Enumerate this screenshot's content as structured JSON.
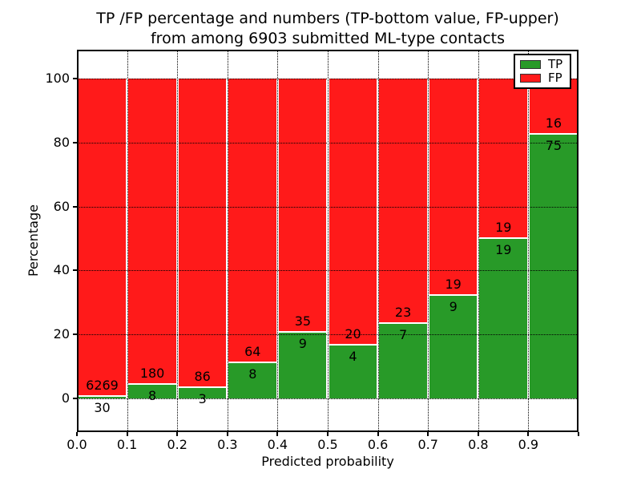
{
  "title": {
    "line1": "TP /FP percentage and numbers (TP-bottom value, FP-upper)",
    "line2": "from among 6903 submitted ML-type contacts"
  },
  "chart_data": {
    "type": "bar",
    "stacked": true,
    "normalized_to_percent": true,
    "grid": "dotted",
    "legend_position": "upper right",
    "total_contacts": 6903,
    "xlabel": "Predicted probability",
    "ylabel": "Percentage",
    "categories": [
      "0.0-0.1",
      "0.1-0.2",
      "0.2-0.3",
      "0.3-0.4",
      "0.4-0.5",
      "0.5-0.6",
      "0.6-0.7",
      "0.7-0.8",
      "0.8-0.9",
      "0.9-1.0"
    ],
    "xticks": [
      "0.0",
      "0.1",
      "0.2",
      "0.3",
      "0.4",
      "0.5",
      "0.6",
      "0.7",
      "0.8",
      "0.9"
    ],
    "yticks": [
      0,
      20,
      40,
      60,
      80,
      100
    ],
    "ylim_percent": [
      0,
      100
    ],
    "series": [
      {
        "name": "TP",
        "color": "#289a28",
        "counts": [
          30,
          8,
          3,
          8,
          9,
          4,
          7,
          9,
          19,
          75
        ],
        "percent": [
          0.5,
          4.3,
          3.4,
          11.1,
          20.5,
          16.7,
          23.3,
          32.1,
          50.0,
          82.4
        ]
      },
      {
        "name": "FP",
        "color": "#ff1a1a",
        "counts": [
          6269,
          180,
          86,
          64,
          35,
          20,
          23,
          19,
          19,
          16
        ],
        "percent": [
          99.5,
          95.7,
          96.6,
          88.9,
          79.5,
          83.3,
          76.7,
          67.9,
          50.0,
          17.6
        ]
      }
    ]
  }
}
